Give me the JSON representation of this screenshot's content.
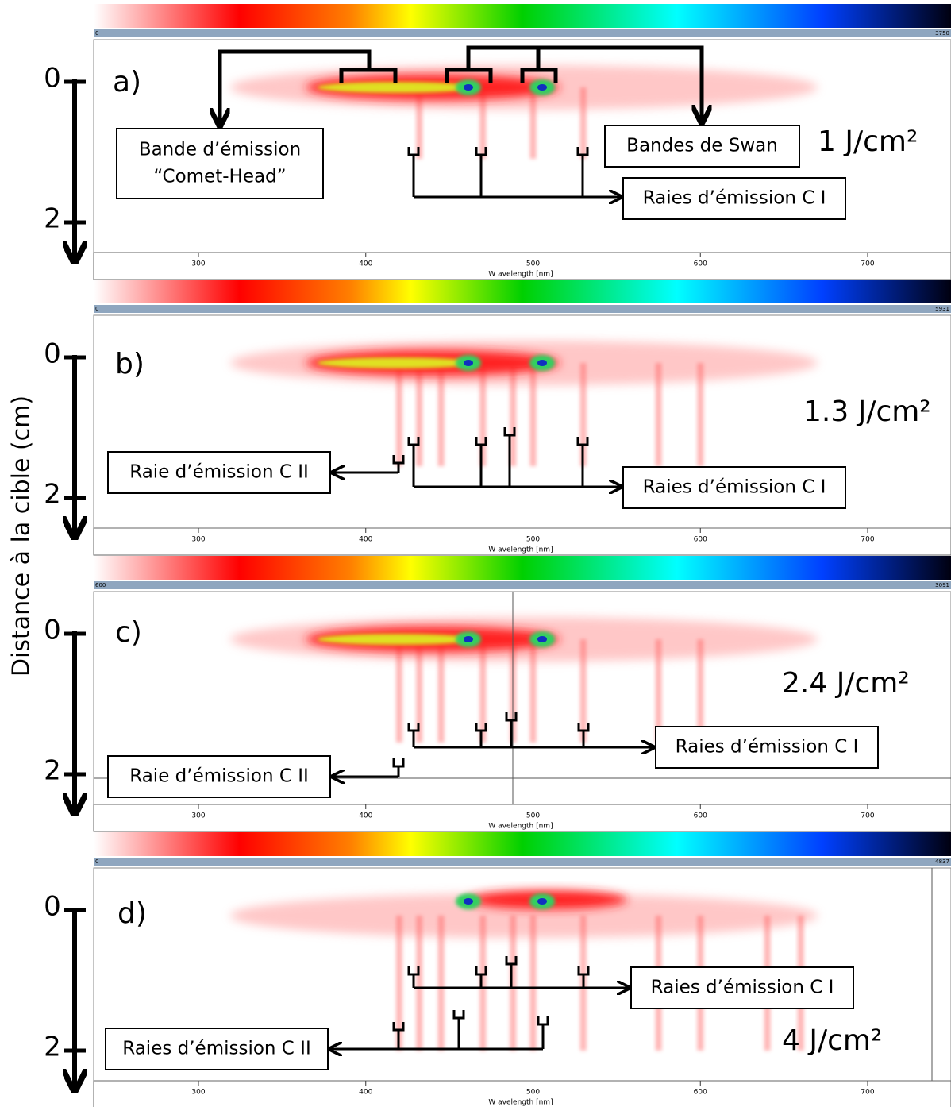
{
  "y_axis_label": "Distance à la cible (cm)",
  "panels": [
    {
      "label": "a)",
      "fluence": "1 J/cm²",
      "colorbar_min": "0",
      "colorbar_max": "3750",
      "y_ticks": [
        "0",
        "2"
      ],
      "x_ticks": [
        "300",
        "400",
        "500",
        "600",
        "700"
      ],
      "x_axis_label": "W avelength [nm]",
      "annotations": [
        [
          "Bande d’émission",
          "“Comet-Head”"
        ],
        [
          "Bandes de Swan"
        ],
        [
          "Raies d’émission C I"
        ]
      ]
    },
    {
      "label": "b)",
      "fluence": "1.3 J/cm²",
      "colorbar_min": "0",
      "colorbar_max": "5931",
      "y_ticks": [
        "0",
        "2"
      ],
      "x_ticks": [
        "300",
        "400",
        "500",
        "600",
        "700"
      ],
      "x_axis_label": "W avelength [nm]",
      "annotations": [
        [
          "Raie d’émission C II"
        ],
        [
          "Raies d’émission C I"
        ]
      ]
    },
    {
      "label": "c)",
      "fluence": "2.4 J/cm²",
      "colorbar_min": "600",
      "colorbar_max": "3091",
      "y_ticks": [
        "0",
        "2"
      ],
      "x_ticks": [
        "300",
        "400",
        "500",
        "600",
        "700"
      ],
      "x_axis_label": "W avelength [nm]",
      "annotations": [
        [
          "Raies d’émission C I"
        ],
        [
          "Raie d’émission C II"
        ]
      ]
    },
    {
      "label": "d)",
      "fluence": "4 J/cm²",
      "colorbar_min": "0",
      "colorbar_max": "4837",
      "y_ticks": [
        "0",
        "2"
      ],
      "x_ticks": [
        "300",
        "400",
        "500",
        "600",
        "700"
      ],
      "x_axis_label": "W avelength [nm]",
      "annotations": [
        [
          "Raies d’émission C I"
        ],
        [
          "Raies d’émission C II"
        ]
      ]
    }
  ]
}
